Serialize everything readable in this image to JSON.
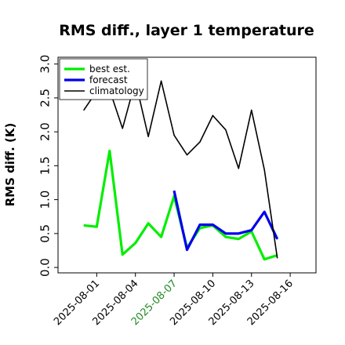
{
  "chart_data": {
    "type": "line",
    "title": "RMS diff., layer 1 temperature",
    "xlabel": "",
    "ylabel": "RMS diff. (K)",
    "ylim": [
      -0.08,
      3.1
    ],
    "xlim": [
      "2025-07-29",
      "2025-08-18"
    ],
    "yticks": [
      "0.0",
      "0.5",
      "1.0",
      "1.5",
      "2.0",
      "2.5",
      "3.0"
    ],
    "xtick_dates": [
      "2025-08-01",
      "2025-08-04",
      "2025-08-07",
      "2025-08-10",
      "2025-08-13",
      "2025-08-16"
    ],
    "xtick_colors": [
      "#000000",
      "#000000",
      "#228b22",
      "#000000",
      "#000000",
      "#000000"
    ],
    "grid": false,
    "legend_position": "top-left",
    "series": [
      {
        "name": "best est.",
        "color": "#00ee00",
        "x": [
          "2025-07-31",
          "2025-08-01",
          "2025-08-02",
          "2025-08-03",
          "2025-08-04",
          "2025-08-05",
          "2025-08-06",
          "2025-08-07",
          "2025-08-08",
          "2025-08-09",
          "2025-08-10",
          "2025-08-11",
          "2025-08-12",
          "2025-08-13",
          "2025-08-14",
          "2025-08-15"
        ],
        "values": [
          0.62,
          0.6,
          1.72,
          0.19,
          0.36,
          0.65,
          0.45,
          1.05,
          0.29,
          0.58,
          0.62,
          0.45,
          0.42,
          0.53,
          0.12,
          0.18
        ]
      },
      {
        "name": "forecast",
        "color": "#0000ee",
        "x": [
          "2025-08-07",
          "2025-08-08",
          "2025-08-09",
          "2025-08-10",
          "2025-08-11",
          "2025-08-12",
          "2025-08-13",
          "2025-08-14",
          "2025-08-15"
        ],
        "values": [
          1.13,
          0.26,
          0.63,
          0.63,
          0.5,
          0.5,
          0.55,
          0.82,
          0.42
        ]
      },
      {
        "name": "climatology",
        "color": "#000000",
        "x": [
          "2025-07-31",
          "2025-08-01",
          "2025-08-02",
          "2025-08-03",
          "2025-08-04",
          "2025-08-05",
          "2025-08-06",
          "2025-08-07",
          "2025-08-08",
          "2025-08-09",
          "2025-08-10",
          "2025-08-11",
          "2025-08-12",
          "2025-08-13",
          "2025-08-14",
          "2025-08-15"
        ],
        "values": [
          2.32,
          2.6,
          2.62,
          2.05,
          2.75,
          1.93,
          2.75,
          1.95,
          1.66,
          1.85,
          2.24,
          2.03,
          1.46,
          2.32,
          1.44,
          0.14
        ]
      }
    ]
  }
}
